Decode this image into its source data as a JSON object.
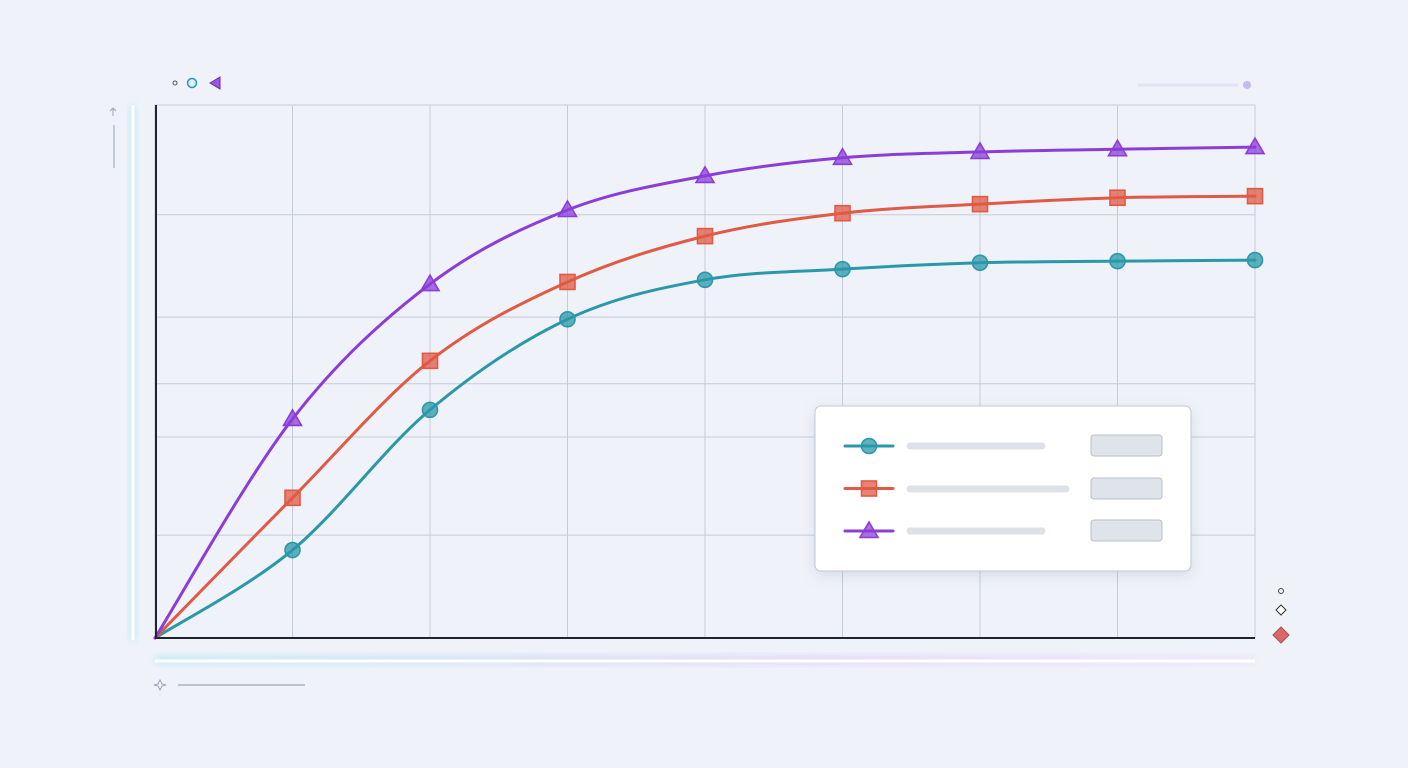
{
  "chart_data": {
    "type": "line",
    "x": [
      0,
      1,
      2,
      3,
      4,
      5,
      6,
      7,
      8
    ],
    "xlim": [
      0,
      8
    ],
    "ylim": [
      0,
      100
    ],
    "grid_y": [
      19.3,
      37.7,
      47.7,
      60.2,
      79.4
    ],
    "grid": true,
    "legend": "lower right",
    "series": [
      {
        "color": "#2b98aa",
        "marker": "circle",
        "values": [
          0,
          16.5,
          42.8,
          59.8,
          67.2,
          69.2,
          70.4,
          70.7,
          70.9
        ]
      },
      {
        "color": "#e05a45",
        "marker": "square",
        "values": [
          0,
          26.3,
          52.0,
          66.8,
          75.4,
          79.7,
          81.4,
          82.6,
          82.9
        ]
      },
      {
        "color": "#8c3dd8",
        "marker": "triangle",
        "values": [
          0,
          41.1,
          66.4,
          80.3,
          86.7,
          90.1,
          91.2,
          91.7,
          92.1
        ]
      }
    ]
  }
}
